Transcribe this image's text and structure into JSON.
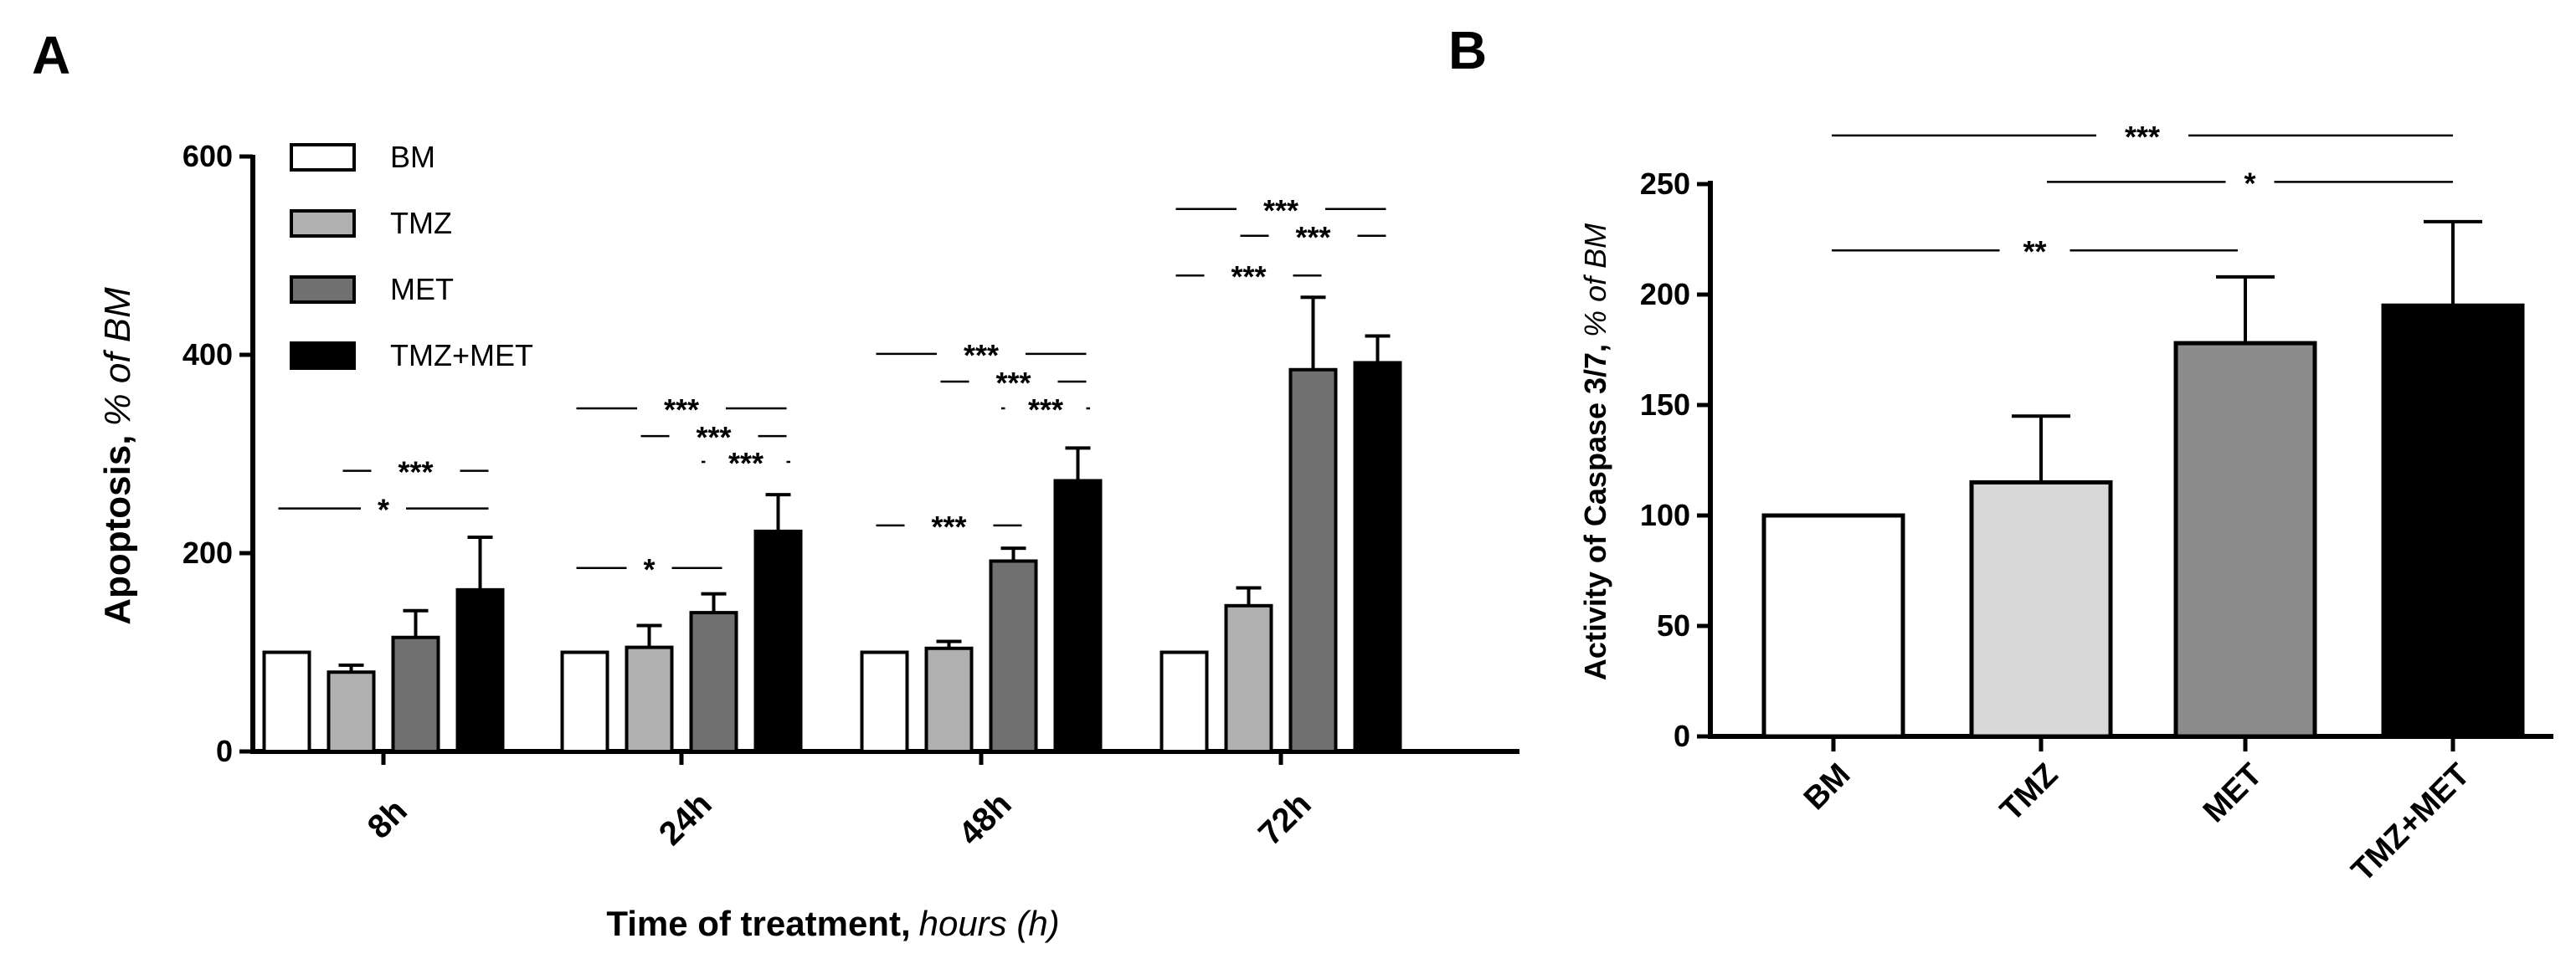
{
  "panels": {
    "a": "A",
    "b": "B"
  },
  "chart_data": [
    {
      "id": "A",
      "type": "bar",
      "ylabel": {
        "bold": "Apoptosis,",
        "italic": "% of BM"
      },
      "xlabel": {
        "bold": "Time of treatment,",
        "italic": "hours (h)"
      },
      "categories": [
        "8h",
        "24h",
        "48h",
        "72h"
      ],
      "ylim": [
        0,
        600
      ],
      "yticks": [
        0,
        200,
        400,
        600
      ],
      "series": [
        {
          "name": "BM",
          "color": "#ffffff",
          "values": [
            100,
            100,
            100,
            100
          ],
          "errors": [
            0,
            0,
            0,
            0
          ]
        },
        {
          "name": "TMZ",
          "color": "#b0b0b0",
          "values": [
            80,
            105,
            104,
            147
          ],
          "errors": [
            7,
            22,
            7,
            18
          ]
        },
        {
          "name": "MET",
          "color": "#707070",
          "values": [
            115,
            140,
            192,
            385
          ],
          "errors": [
            27,
            19,
            13,
            73
          ]
        },
        {
          "name": "TMZ+MET",
          "color": "#000000",
          "values": [
            163,
            222,
            273,
            392
          ],
          "errors": [
            53,
            37,
            33,
            27
          ]
        }
      ],
      "significance": [
        {
          "group": 0,
          "from": 0,
          "to": 3,
          "y": 245,
          "label": "*"
        },
        {
          "group": 0,
          "from": 1,
          "to": 3,
          "y": 283,
          "label": "***"
        },
        {
          "group": 1,
          "from": 0,
          "to": 2,
          "y": 185,
          "label": "*"
        },
        {
          "group": 1,
          "from": 0,
          "to": 3,
          "y": 346,
          "label": "***"
        },
        {
          "group": 1,
          "from": 1,
          "to": 3,
          "y": 318,
          "label": "***"
        },
        {
          "group": 1,
          "from": 2,
          "to": 3,
          "y": 292,
          "label": "***"
        },
        {
          "group": 2,
          "from": 0,
          "to": 2,
          "y": 228,
          "label": "***"
        },
        {
          "group": 2,
          "from": 0,
          "to": 3,
          "y": 401,
          "label": "***"
        },
        {
          "group": 2,
          "from": 1,
          "to": 3,
          "y": 373,
          "label": "***"
        },
        {
          "group": 2,
          "from": 2,
          "to": 3,
          "y": 346,
          "label": "***"
        },
        {
          "group": 3,
          "from": 0,
          "to": 2,
          "y": 480,
          "label": "***"
        },
        {
          "group": 3,
          "from": 0,
          "to": 3,
          "y": 547,
          "label": "***"
        },
        {
          "group": 3,
          "from": 1,
          "to": 3,
          "y": 520,
          "label": "***"
        }
      ]
    },
    {
      "id": "B",
      "type": "bar",
      "ylabel": {
        "bold": "Activity of Caspase 3/7,",
        "italic": "% of BM"
      },
      "categories": [
        "BM",
        "TMZ",
        "MET",
        "TMZ+MET"
      ],
      "colors": [
        "#ffffff",
        "#d8d8d8",
        "#8c8c8c",
        "#000000"
      ],
      "values": [
        100,
        115,
        178,
        195
      ],
      "errors": [
        0,
        30,
        30,
        38
      ],
      "ylim": [
        0,
        250
      ],
      "yticks": [
        0,
        50,
        100,
        150,
        200,
        250
      ],
      "significance": [
        {
          "from": 0,
          "to": 2,
          "y": 220,
          "label": "**"
        },
        {
          "from": 1,
          "to": 3,
          "y": 251,
          "label": "*"
        },
        {
          "from": 0,
          "to": 3,
          "y": 272,
          "label": "***"
        }
      ]
    }
  ]
}
